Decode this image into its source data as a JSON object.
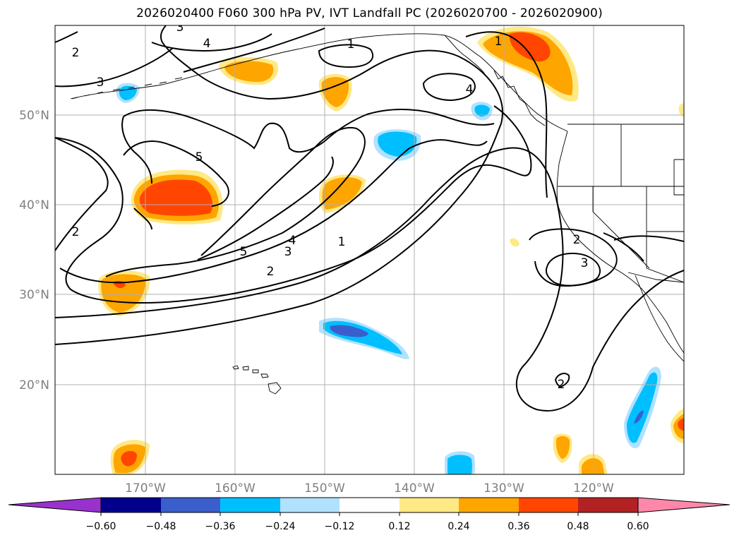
{
  "title": "2026020400 F060 300 hPa PV, IVT Landfall PC (2026020700 - 2026020900)",
  "latitude_labels": [
    "50°N",
    "40°N",
    "30°N",
    "20°N"
  ],
  "longitude_labels": [
    "170°W",
    "160°W",
    "150°W",
    "140°W",
    "130°W",
    "120°W"
  ],
  "contour_labels": [
    "1",
    "2",
    "3",
    "4",
    "5"
  ],
  "colorbar": {
    "ticks": [
      "−0.60",
      "−0.48",
      "−0.36",
      "−0.24",
      "−0.12",
      "0.12",
      "0.24",
      "0.36",
      "0.48",
      "0.60"
    ],
    "colors": [
      "#9932cc",
      "#00008b",
      "#3a5fcd",
      "#00bfff",
      "#b0e2ff",
      "#ffffff",
      "#ffe985",
      "#ffa500",
      "#ff4500",
      "#b22222",
      "#ff88aa"
    ]
  }
}
